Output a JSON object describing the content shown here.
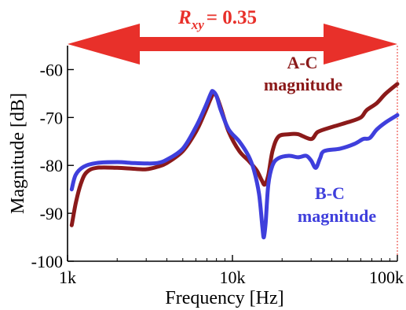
{
  "chart_data": {
    "type": "line",
    "title": "",
    "xlabel": "Frequency [Hz]",
    "ylabel": "Magnitude [dB]",
    "x_scale": "log",
    "xlim": [
      1000,
      100000
    ],
    "ylim": [
      -100,
      -55
    ],
    "x_ticks": [
      {
        "value": 1000,
        "label": "1k"
      },
      {
        "value": 10000,
        "label": "10k"
      },
      {
        "value": 100000,
        "label": "100k"
      }
    ],
    "y_ticks": [
      {
        "value": -60,
        "label": "-60"
      },
      {
        "value": -70,
        "label": "-70"
      },
      {
        "value": -80,
        "label": "-80"
      },
      {
        "value": -90,
        "label": "-90"
      },
      {
        "value": -100,
        "label": "-100"
      }
    ],
    "grid": false,
    "annotations": {
      "arrow_label_symbol": "R",
      "arrow_label_subscript": "xy",
      "arrow_label_value": "= 0.35",
      "arrow_color": "#e8302a",
      "ac_label_line1": "A-C",
      "ac_label_line2": "magnitude",
      "bc_label_line1": "B-C",
      "bc_label_line2": "magnitude"
    },
    "series": [
      {
        "color": "#8b1a1a",
        "points": [
          [
            1060,
            -92.5
          ],
          [
            1120,
            -88
          ],
          [
            1200,
            -84
          ],
          [
            1300,
            -81.5
          ],
          [
            1500,
            -80.5
          ],
          [
            2000,
            -80.5
          ],
          [
            2500,
            -80.7
          ],
          [
            3000,
            -80.8
          ],
          [
            3500,
            -80.3
          ],
          [
            4000,
            -79.5
          ],
          [
            5000,
            -77
          ],
          [
            6000,
            -73
          ],
          [
            6800,
            -69
          ],
          [
            7400,
            -66
          ],
          [
            7700,
            -65
          ],
          [
            8000,
            -65.5
          ],
          [
            8500,
            -68
          ],
          [
            9500,
            -73
          ],
          [
            11000,
            -77
          ],
          [
            12500,
            -79
          ],
          [
            14000,
            -81
          ],
          [
            15000,
            -83
          ],
          [
            15700,
            -84
          ],
          [
            16500,
            -82
          ],
          [
            17500,
            -77
          ],
          [
            19000,
            -74
          ],
          [
            22000,
            -73.5
          ],
          [
            25000,
            -73.5
          ],
          [
            30000,
            -74.5
          ],
          [
            33000,
            -73
          ],
          [
            40000,
            -72
          ],
          [
            50000,
            -71
          ],
          [
            60000,
            -70
          ],
          [
            65000,
            -68.5
          ],
          [
            75000,
            -67
          ],
          [
            85000,
            -65
          ],
          [
            100000,
            -63
          ]
        ]
      },
      {
        "color": "#3f3fdc",
        "points": [
          [
            1060,
            -85
          ],
          [
            1120,
            -82
          ],
          [
            1250,
            -80.3
          ],
          [
            1500,
            -79.5
          ],
          [
            2000,
            -79.3
          ],
          [
            2500,
            -79.5
          ],
          [
            3000,
            -79.6
          ],
          [
            3500,
            -79.5
          ],
          [
            4000,
            -78.8
          ],
          [
            5000,
            -76.5
          ],
          [
            6000,
            -72
          ],
          [
            6800,
            -68
          ],
          [
            7400,
            -65
          ],
          [
            7600,
            -64.5
          ],
          [
            8000,
            -65.5
          ],
          [
            8500,
            -68.5
          ],
          [
            9500,
            -72.5
          ],
          [
            11000,
            -75
          ],
          [
            12500,
            -78
          ],
          [
            13500,
            -81
          ],
          [
            14500,
            -86
          ],
          [
            15200,
            -93
          ],
          [
            15500,
            -95
          ],
          [
            15900,
            -92
          ],
          [
            16500,
            -84
          ],
          [
            17500,
            -80
          ],
          [
            19000,
            -78.5
          ],
          [
            22000,
            -78
          ],
          [
            25000,
            -78.3
          ],
          [
            28000,
            -78
          ],
          [
            30000,
            -79
          ],
          [
            32000,
            -80.5
          ],
          [
            34000,
            -78.5
          ],
          [
            36000,
            -77
          ],
          [
            45000,
            -76.5
          ],
          [
            55000,
            -75.5
          ],
          [
            62000,
            -74.5
          ],
          [
            68000,
            -74.3
          ],
          [
            75000,
            -72.5
          ],
          [
            85000,
            -71
          ],
          [
            100000,
            -69.5
          ]
        ]
      }
    ]
  }
}
